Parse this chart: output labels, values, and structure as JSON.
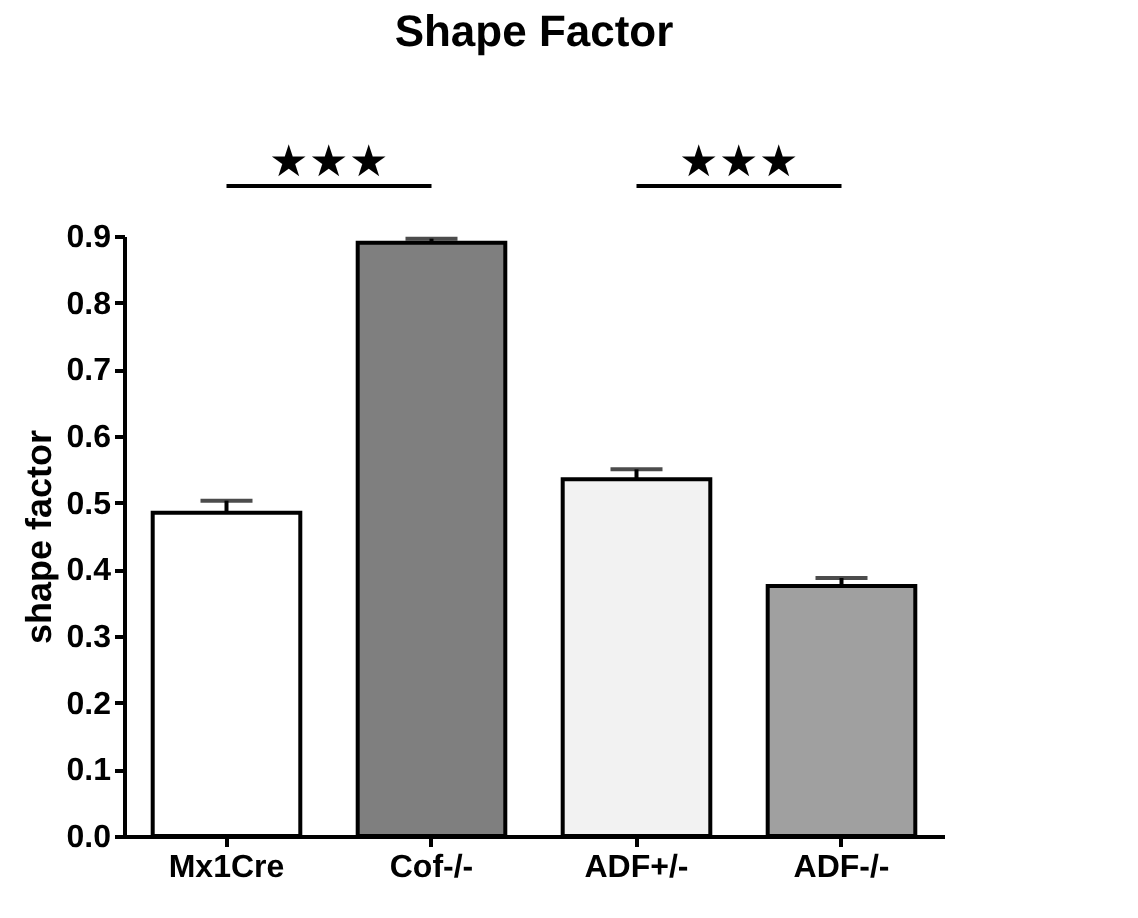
{
  "chart_data": {
    "type": "bar",
    "title": "Shape Factor",
    "ylabel": "shape factor",
    "categories": [
      "Mx1Cre",
      "Cof-/-",
      "ADF+/-",
      "ADF-/-"
    ],
    "values": [
      0.485,
      0.89,
      0.535,
      0.375
    ],
    "errors": [
      0.018,
      0.006,
      0.015,
      0.012
    ],
    "colors": [
      "#ffffff",
      "#7f7f7f",
      "#f2f2f2",
      "#a0a0a0"
    ],
    "ylim": [
      0,
      0.9
    ],
    "yticks": [
      {
        "value": 0,
        "label": "0.0"
      },
      0.1,
      0.2,
      0.3,
      0.4,
      0.5,
      0.6,
      0.7,
      0.8,
      0.9
    ],
    "grid": false,
    "annotations": [
      "★★★",
      "★★★"
    ]
  }
}
